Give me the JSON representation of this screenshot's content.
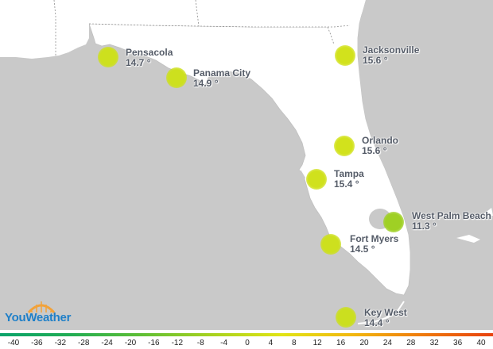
{
  "cities": [
    {
      "name": "Pensacola",
      "temp": "14.7 °",
      "dot_color": "#cde01e"
    },
    {
      "name": "Panama City",
      "temp": "14.9 °",
      "dot_color": "#cde01e"
    },
    {
      "name": "Jacksonville",
      "temp": "15.6 °",
      "dot_color": "#d2e21c"
    },
    {
      "name": "Orlando",
      "temp": "15.6 °",
      "dot_color": "#d2e21c"
    },
    {
      "name": "Tampa",
      "temp": "15.4 °",
      "dot_color": "#d0e11d"
    },
    {
      "name": "West Palm Beach",
      "temp": "11.3 °",
      "dot_color": "#9fd024"
    },
    {
      "name": "Fort Myers",
      "temp": "14.5 °",
      "dot_color": "#cde01e"
    },
    {
      "name": "Key West",
      "temp": "14.4 °",
      "dot_color": "#cbdf1f"
    }
  ],
  "scale": {
    "ticks": [
      "-40",
      "-36",
      "-32",
      "-28",
      "-24",
      "-20",
      "-16",
      "-12",
      "-8",
      "-4",
      "0",
      "4",
      "8",
      "12",
      "16",
      "20",
      "24",
      "28",
      "32",
      "36",
      "40"
    ],
    "gradient_colors": [
      "#0aa36b",
      "#21ad54",
      "#5fbf35",
      "#a7d21f",
      "#e1e415",
      "#f2b80f",
      "#ef7a0c",
      "#e8420f"
    ]
  },
  "logo": {
    "text": "YouWeather"
  },
  "colors": {
    "land": "#ffffff",
    "background": "#c9c9c9",
    "border": "#8e8e8e"
  }
}
